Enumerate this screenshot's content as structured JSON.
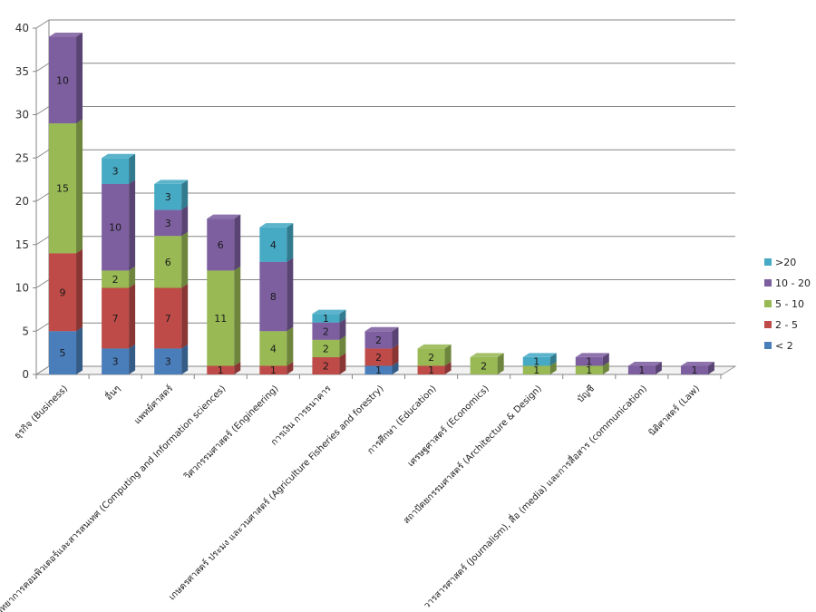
{
  "chart_data": {
    "type": "bar",
    "stacked": true,
    "three_d": true,
    "categories": [
      "ธุรกิจ (Business)",
      "อื่นๆ",
      "แพทย์ศาสตร์",
      "วิทยาการคอมพิวเตอร์และสารสนเทศ (Computing and Information sciences)",
      "วิศวกรรมศาสตร์ (Engineering)",
      "การเงิน การธนาคาร",
      "เกษตรศาสตร์ ประมง และวนศาสตร์ (Agriculture Fisheries and forestry)",
      "การศึกษา (Education)",
      "เศรษฐศาสตร์ (Economics)",
      "สถาปัตยกรรมศาสตร์ (Architecture & Design)",
      "บัญชี",
      "วารสารศาสตร์ (Journalism), สื่อ (media) และการสื่อสาร (communication)",
      "นิติศาสตร์ (Law)"
    ],
    "series": [
      {
        "name": "< 2",
        "color": "#4a7ebb",
        "values": [
          5,
          3,
          3,
          0,
          0,
          0,
          1,
          0,
          0,
          0,
          0,
          0,
          0
        ]
      },
      {
        "name": "2 - 5",
        "color": "#be4b48",
        "values": [
          9,
          7,
          7,
          1,
          1,
          2,
          2,
          1,
          0,
          0,
          0,
          0,
          0
        ]
      },
      {
        "name": "5 - 10",
        "color": "#98b954",
        "values": [
          15,
          2,
          6,
          11,
          4,
          2,
          0,
          2,
          2,
          1,
          1,
          0,
          0
        ]
      },
      {
        "name": "10 - 20",
        "color": "#7d5fa0",
        "values": [
          10,
          10,
          3,
          6,
          8,
          2,
          2,
          0,
          0,
          0,
          1,
          1,
          1
        ]
      },
      {
        "name": ">20",
        "color": "#46aac5",
        "values": [
          0,
          3,
          3,
          0,
          4,
          1,
          0,
          0,
          0,
          1,
          0,
          0,
          0
        ]
      }
    ],
    "ylim": [
      0,
      40
    ],
    "yticks": [
      0,
      5,
      10,
      15,
      20,
      25,
      30,
      35,
      40
    ],
    "grid": true,
    "legend_position": "right",
    "title": "",
    "xlabel": "",
    "ylabel": ""
  }
}
